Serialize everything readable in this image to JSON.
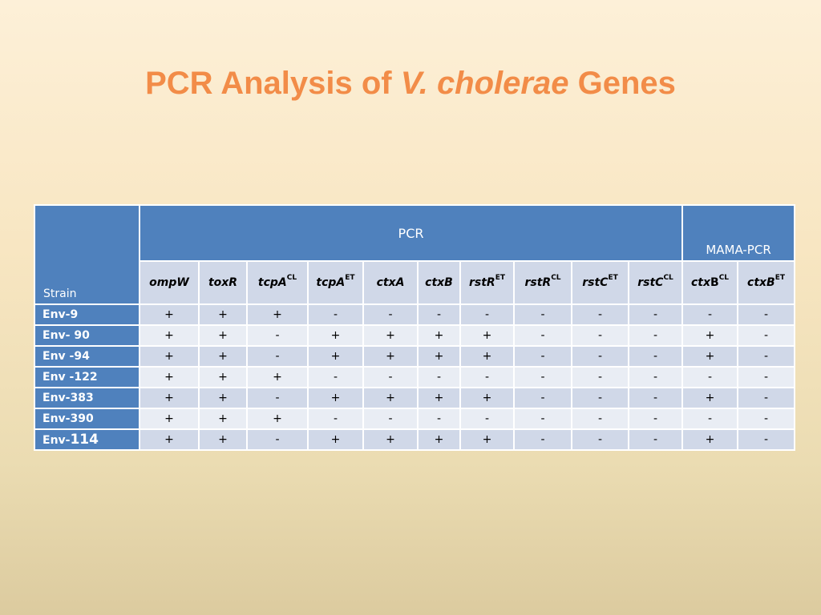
{
  "title": {
    "prefix": "PCR Analysis of ",
    "italic": "V. cholerae",
    "suffix": " Genes"
  },
  "table": {
    "strain_header": "Strain",
    "group_pcr": "PCR",
    "group_mama": "MAMA-PCR",
    "genes": [
      {
        "base": "ompW",
        "sup": ""
      },
      {
        "base": "toxR",
        "sup": ""
      },
      {
        "base": "tcpA",
        "sup": "CL"
      },
      {
        "base": "tcpA",
        "sup": "ET"
      },
      {
        "base": "ctxA",
        "sup": ""
      },
      {
        "base": "ctxB",
        "sup": ""
      },
      {
        "base": "rstR",
        "sup": "ET"
      },
      {
        "base": "rstR",
        "sup": "CL"
      },
      {
        "base": "rstC",
        "sup": "ET"
      },
      {
        "base": "rstC",
        "sup": "CL"
      },
      {
        "base": "ctx",
        "upright": "B",
        "sup": "CL"
      },
      {
        "base": "ctxB",
        "sup": "ET"
      }
    ],
    "rows": [
      {
        "strain": "Env-9",
        "values": [
          "+",
          "+",
          "+",
          "-",
          "-",
          "-",
          "-",
          "-",
          "-",
          "-",
          "-",
          "-"
        ]
      },
      {
        "strain": "Env- 90",
        "values": [
          "+",
          "+",
          "-",
          "+",
          "+",
          "+",
          "+",
          "-",
          "-",
          "-",
          "+",
          "-"
        ]
      },
      {
        "strain": "Env -94",
        "values": [
          "+",
          "+",
          "-",
          "+",
          "+",
          "+",
          "+",
          "-",
          "-",
          "-",
          "+",
          "-"
        ]
      },
      {
        "strain": "Env -122",
        "values": [
          "+",
          "+",
          "+",
          "-",
          "-",
          "-",
          "-",
          "-",
          "-",
          "-",
          "-",
          "-"
        ]
      },
      {
        "strain": "Env-383",
        "values": [
          "+",
          "+",
          "-",
          "+",
          "+",
          "+",
          "+",
          "-",
          "-",
          "-",
          "+",
          "-"
        ]
      },
      {
        "strain": "Env-390",
        "values": [
          "+",
          "+",
          "+",
          "-",
          "-",
          "-",
          "-",
          "-",
          "-",
          "-",
          "-",
          "-"
        ]
      },
      {
        "strain": "Env-114",
        "strain_prefix": "Env-",
        "strain_number": "114",
        "values": [
          "+",
          "+",
          "-",
          "+",
          "+",
          "+",
          "+",
          "-",
          "-",
          "-",
          "+",
          "-"
        ]
      }
    ]
  }
}
